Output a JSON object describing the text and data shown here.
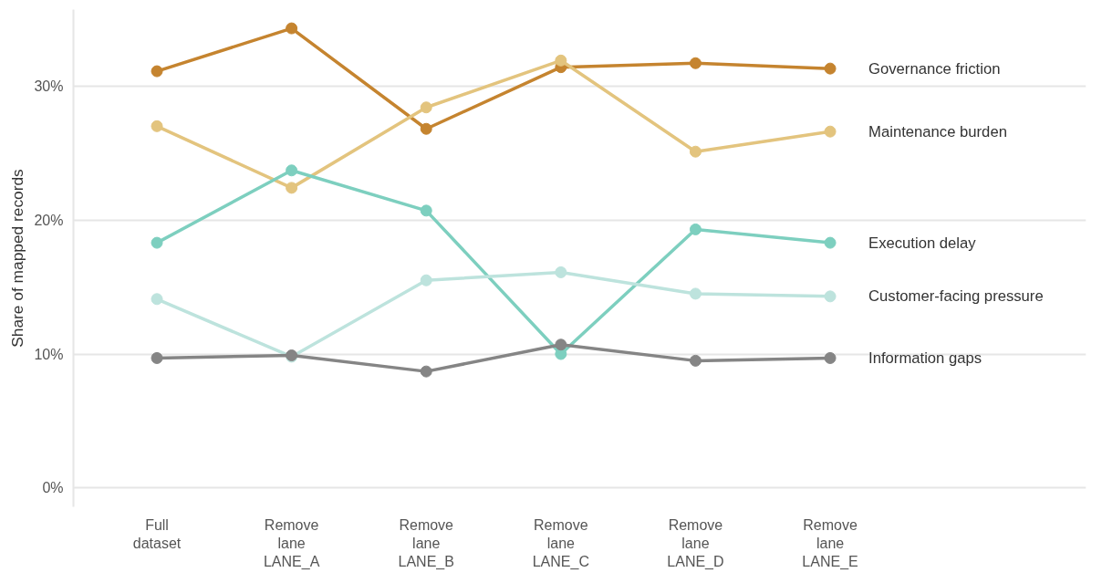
{
  "chart_data": {
    "type": "line",
    "ylabel": "Share of mapped records",
    "categories": [
      "Full\ndataset",
      "Remove\nlane\nLANE_A",
      "Remove\nlane\nLANE_B",
      "Remove\nlane\nLANE_C",
      "Remove\nlane\nLANE_D",
      "Remove\nlane\nLANE_E"
    ],
    "series": [
      {
        "name": "Governance friction",
        "color": "#c5842f",
        "values": [
          31.1,
          34.3,
          26.8,
          31.4,
          31.7,
          31.3
        ]
      },
      {
        "name": "Maintenance burden",
        "color": "#e3c47e",
        "values": [
          27.0,
          22.4,
          28.4,
          31.9,
          25.1,
          26.6
        ]
      },
      {
        "name": "Execution delay",
        "color": "#7dcfbf",
        "values": [
          18.3,
          23.7,
          20.7,
          10.0,
          19.3,
          18.3
        ]
      },
      {
        "name": "Customer-facing pressure",
        "color": "#bde3dd",
        "values": [
          14.1,
          9.8,
          15.5,
          16.1,
          14.5,
          14.3
        ]
      },
      {
        "name": "Information gaps",
        "color": "#858585",
        "values": [
          9.7,
          9.9,
          8.7,
          10.7,
          9.5,
          9.7
        ]
      }
    ],
    "ylim": [
      -1.4,
      35.7
    ],
    "yticks": [
      {
        "value": 0,
        "label": "0%"
      },
      {
        "value": 10,
        "label": "10%"
      },
      {
        "value": 20,
        "label": "20%"
      },
      {
        "value": 30,
        "label": "30%"
      }
    ],
    "grid": "y",
    "marker": "circle",
    "line_style": "solid"
  }
}
